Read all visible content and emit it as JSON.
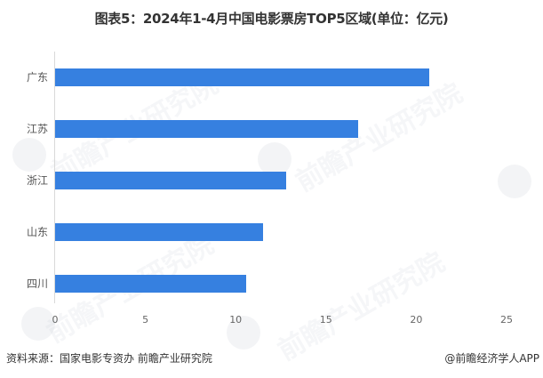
{
  "title": "图表5：2024年1-4月中国电影票房TOP5区域(单位：亿元)",
  "chart_data": {
    "type": "bar",
    "orientation": "horizontal",
    "title": "图表5：2024年1-4月中国电影票房TOP5区域(单位：亿元)",
    "categories": [
      "广东",
      "江苏",
      "浙江",
      "山东",
      "四川"
    ],
    "values": [
      20.7,
      16.8,
      12.8,
      11.5,
      10.6
    ],
    "xlabel": "",
    "ylabel": "",
    "xlim": [
      0,
      25
    ],
    "x_ticks": [
      "0",
      "5",
      "10",
      "15",
      "20",
      "25"
    ],
    "unit": "亿元",
    "grid": false,
    "legend": null,
    "bar_color": "#3680e0"
  },
  "footer": {
    "source": "资料来源：国家电影专资办 前瞻产业研究院",
    "credit": "@前瞻经济学人APP"
  },
  "watermark": "前瞻产业研究院"
}
